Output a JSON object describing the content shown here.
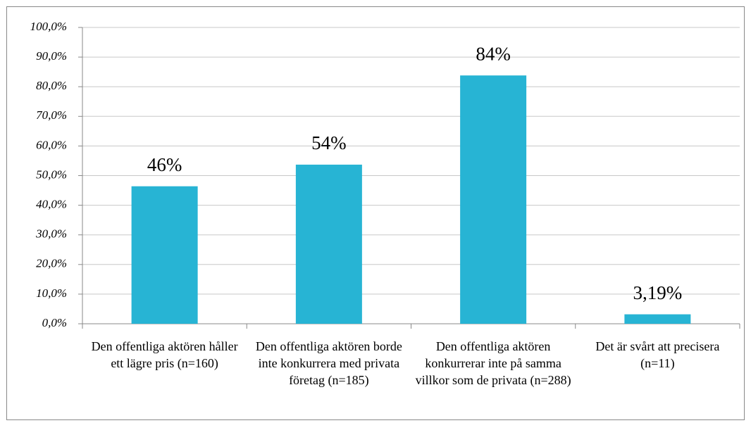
{
  "chart_data": {
    "type": "bar",
    "categories": [
      "Den offentliga aktören håller ett lägre pris (n=160)",
      "Den offentliga aktören borde inte konkurrera med privata företag (n=185)",
      "Den offentliga aktören konkurrerar inte på samma villkor som de privata (n=288)",
      "Det är svårt att precisera (n=11)"
    ],
    "values": [
      46.4,
      53.7,
      83.8,
      3.19
    ],
    "value_labels": [
      "46%",
      "54%",
      "84%",
      "3,19%"
    ],
    "color": "#27b4d4",
    "ylim": [
      0,
      100
    ],
    "yticks": [
      {
        "value": 0,
        "label": "0,0%"
      },
      {
        "value": 10,
        "label": "10,0%"
      },
      {
        "value": 20,
        "label": "20,0%"
      },
      {
        "value": 30,
        "label": "30,0%"
      },
      {
        "value": 40,
        "label": "40,0%"
      },
      {
        "value": 50,
        "label": "50,0%"
      },
      {
        "value": 60,
        "label": "60,0%"
      },
      {
        "value": 70,
        "label": "70,0%"
      },
      {
        "value": 80,
        "label": "80,0%"
      },
      {
        "value": 90,
        "label": "90,0%"
      },
      {
        "value": 100,
        "label": "100,0%"
      }
    ],
    "grid": true
  }
}
